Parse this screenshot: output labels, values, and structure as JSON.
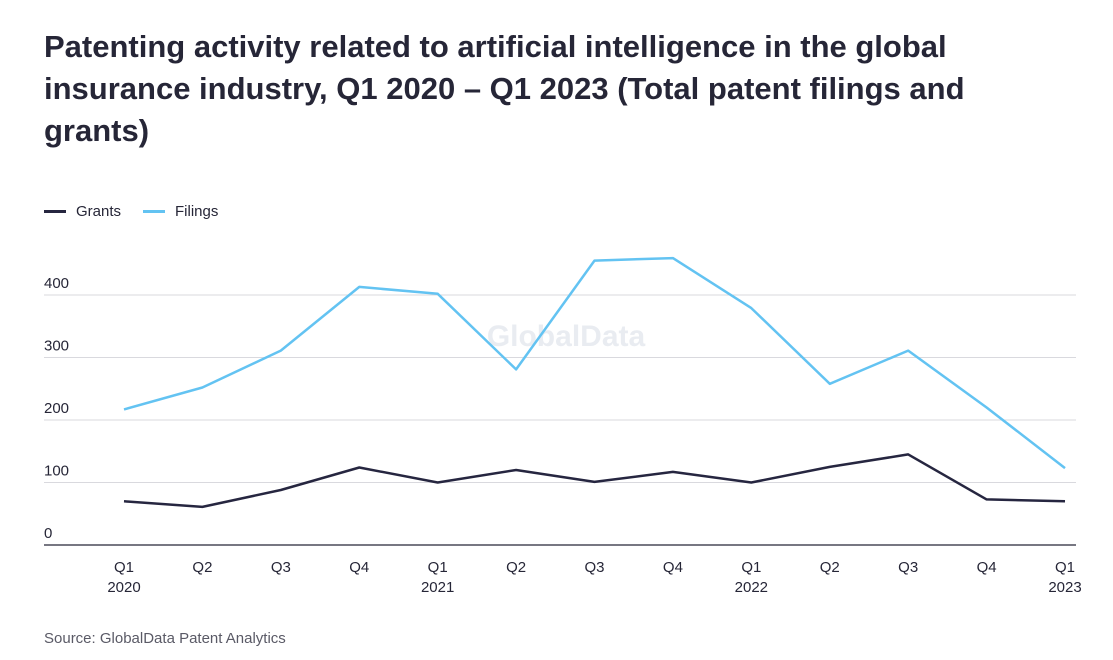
{
  "title": "Patenting activity related to artificial intelligence in the global insurance industry, Q1 2020 – Q1 2023 (Total patent filings and grants)",
  "source": "Source: GlobalData Patent Analytics",
  "watermark": "GlobalData",
  "legend": [
    {
      "name": "Grants",
      "color": "#262640"
    },
    {
      "name": "Filings",
      "color": "#63c3f2"
    }
  ],
  "chart_data": {
    "type": "line",
    "title": "Patenting activity related to artificial intelligence in the global insurance industry, Q1 2020 – Q1 2023 (Total patent filings and grants)",
    "xlabel": "",
    "ylabel": "",
    "categories": [
      [
        "Q1",
        "2020"
      ],
      [
        "Q2",
        ""
      ],
      [
        "Q3",
        ""
      ],
      [
        "Q4",
        ""
      ],
      [
        "Q1",
        "2021"
      ],
      [
        "Q2",
        ""
      ],
      [
        "Q3",
        ""
      ],
      [
        "Q4",
        ""
      ],
      [
        "Q1",
        "2022"
      ],
      [
        "Q2",
        ""
      ],
      [
        "Q3",
        ""
      ],
      [
        "Q4",
        ""
      ],
      [
        "Q1",
        "2023"
      ]
    ],
    "yticks": [
      0,
      100,
      200,
      300,
      400
    ],
    "ylim": [
      0,
      480
    ],
    "grid": true,
    "legend_position": "top-left",
    "series": [
      {
        "name": "Grants",
        "color": "#262640",
        "values": [
          70,
          61,
          88,
          124,
          100,
          120,
          101,
          117,
          100,
          125,
          145,
          73,
          70
        ]
      },
      {
        "name": "Filings",
        "color": "#63c3f2",
        "values": [
          217,
          252,
          311,
          413,
          402,
          281,
          455,
          459,
          379,
          258,
          311,
          220,
          123
        ]
      }
    ]
  }
}
